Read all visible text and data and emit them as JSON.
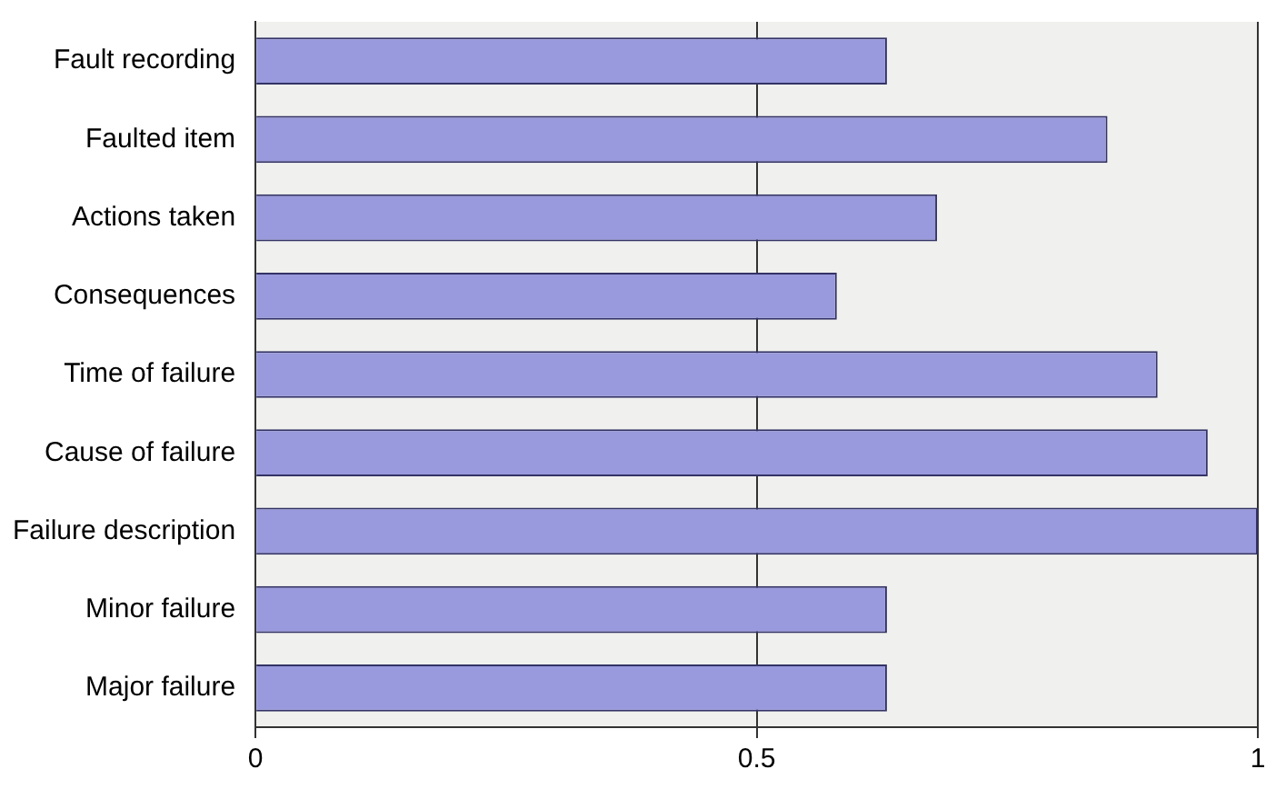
{
  "chart_data": {
    "type": "bar",
    "orientation": "horizontal",
    "categories": [
      "Fault recording",
      "Faulted item",
      "Actions taken",
      "Consequences",
      "Time of failure",
      "Cause of failure",
      "Failure description",
      "Minor failure",
      "Major failure"
    ],
    "values": [
      0.63,
      0.85,
      0.68,
      0.58,
      0.9,
      0.95,
      1.0,
      0.63,
      0.63
    ],
    "color": "#9999dd",
    "xlim": [
      0,
      1
    ],
    "xticks": [
      0,
      0.5,
      1
    ],
    "grid": "x",
    "legend": false
  }
}
